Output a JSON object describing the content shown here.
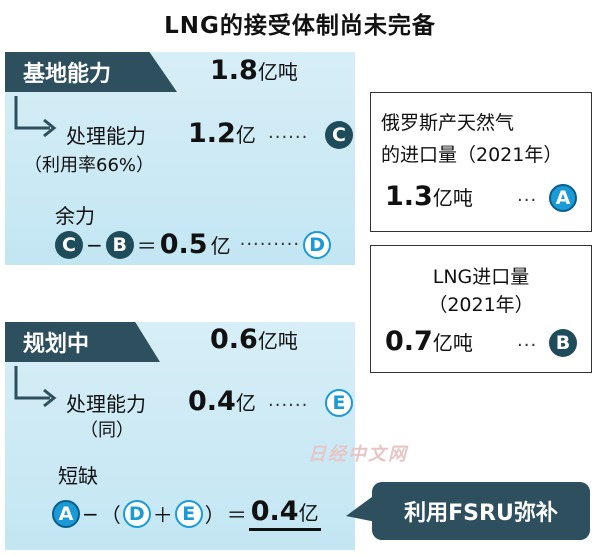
{
  "title": "LNG的接受体制尚未完备",
  "base": {
    "header": "基地能力",
    "capacity": "1.8",
    "capacity_unit": "亿吨",
    "processing_label": "处理能力",
    "processing_note": "（利用率66%）",
    "processing_value": "1.2",
    "processing_unit": "亿",
    "processing_dots": "······",
    "processing_marker": "C",
    "surplus_label": "余力",
    "surplus_formula": {
      "a": "C",
      "minus": "−",
      "b": "B",
      "equals": "＝",
      "value": "0.5",
      "unit": "亿",
      "dots": "·········",
      "result": "D"
    }
  },
  "planned": {
    "header": "规划中",
    "capacity": "0.6",
    "capacity_unit": "亿吨",
    "processing_label": "处理能力",
    "processing_note": "（同）",
    "processing_value": "0.4",
    "processing_unit": "亿",
    "processing_dots": "······",
    "processing_marker": "E",
    "shortage_label": "短缺",
    "shortage_formula": {
      "a": "A",
      "minus": "−",
      "open": "（",
      "d": "D",
      "plus": "＋",
      "e": "E",
      "close": "）",
      "equals": "＝",
      "value": "0.4",
      "unit": "亿"
    }
  },
  "russia_box": {
    "title_line1": "俄罗斯产天然气",
    "title_line2": "的进口量（2021年）",
    "value": "1.3",
    "unit": "亿吨",
    "dots": "···",
    "marker": "A"
  },
  "lng_box": {
    "title_line1": "LNG进口量",
    "title_line2": "（2021年）",
    "value": "0.7",
    "unit": "亿吨",
    "dots": "···",
    "marker": "B"
  },
  "fsru_callout": "利用FSRU弥补",
  "watermark": "日经中文网",
  "colors": {
    "panel": "#c9e8f4",
    "header": "#2d4f5e",
    "accent_blue": "#1a9ad6",
    "dark_marker": "#1e4c5a"
  }
}
